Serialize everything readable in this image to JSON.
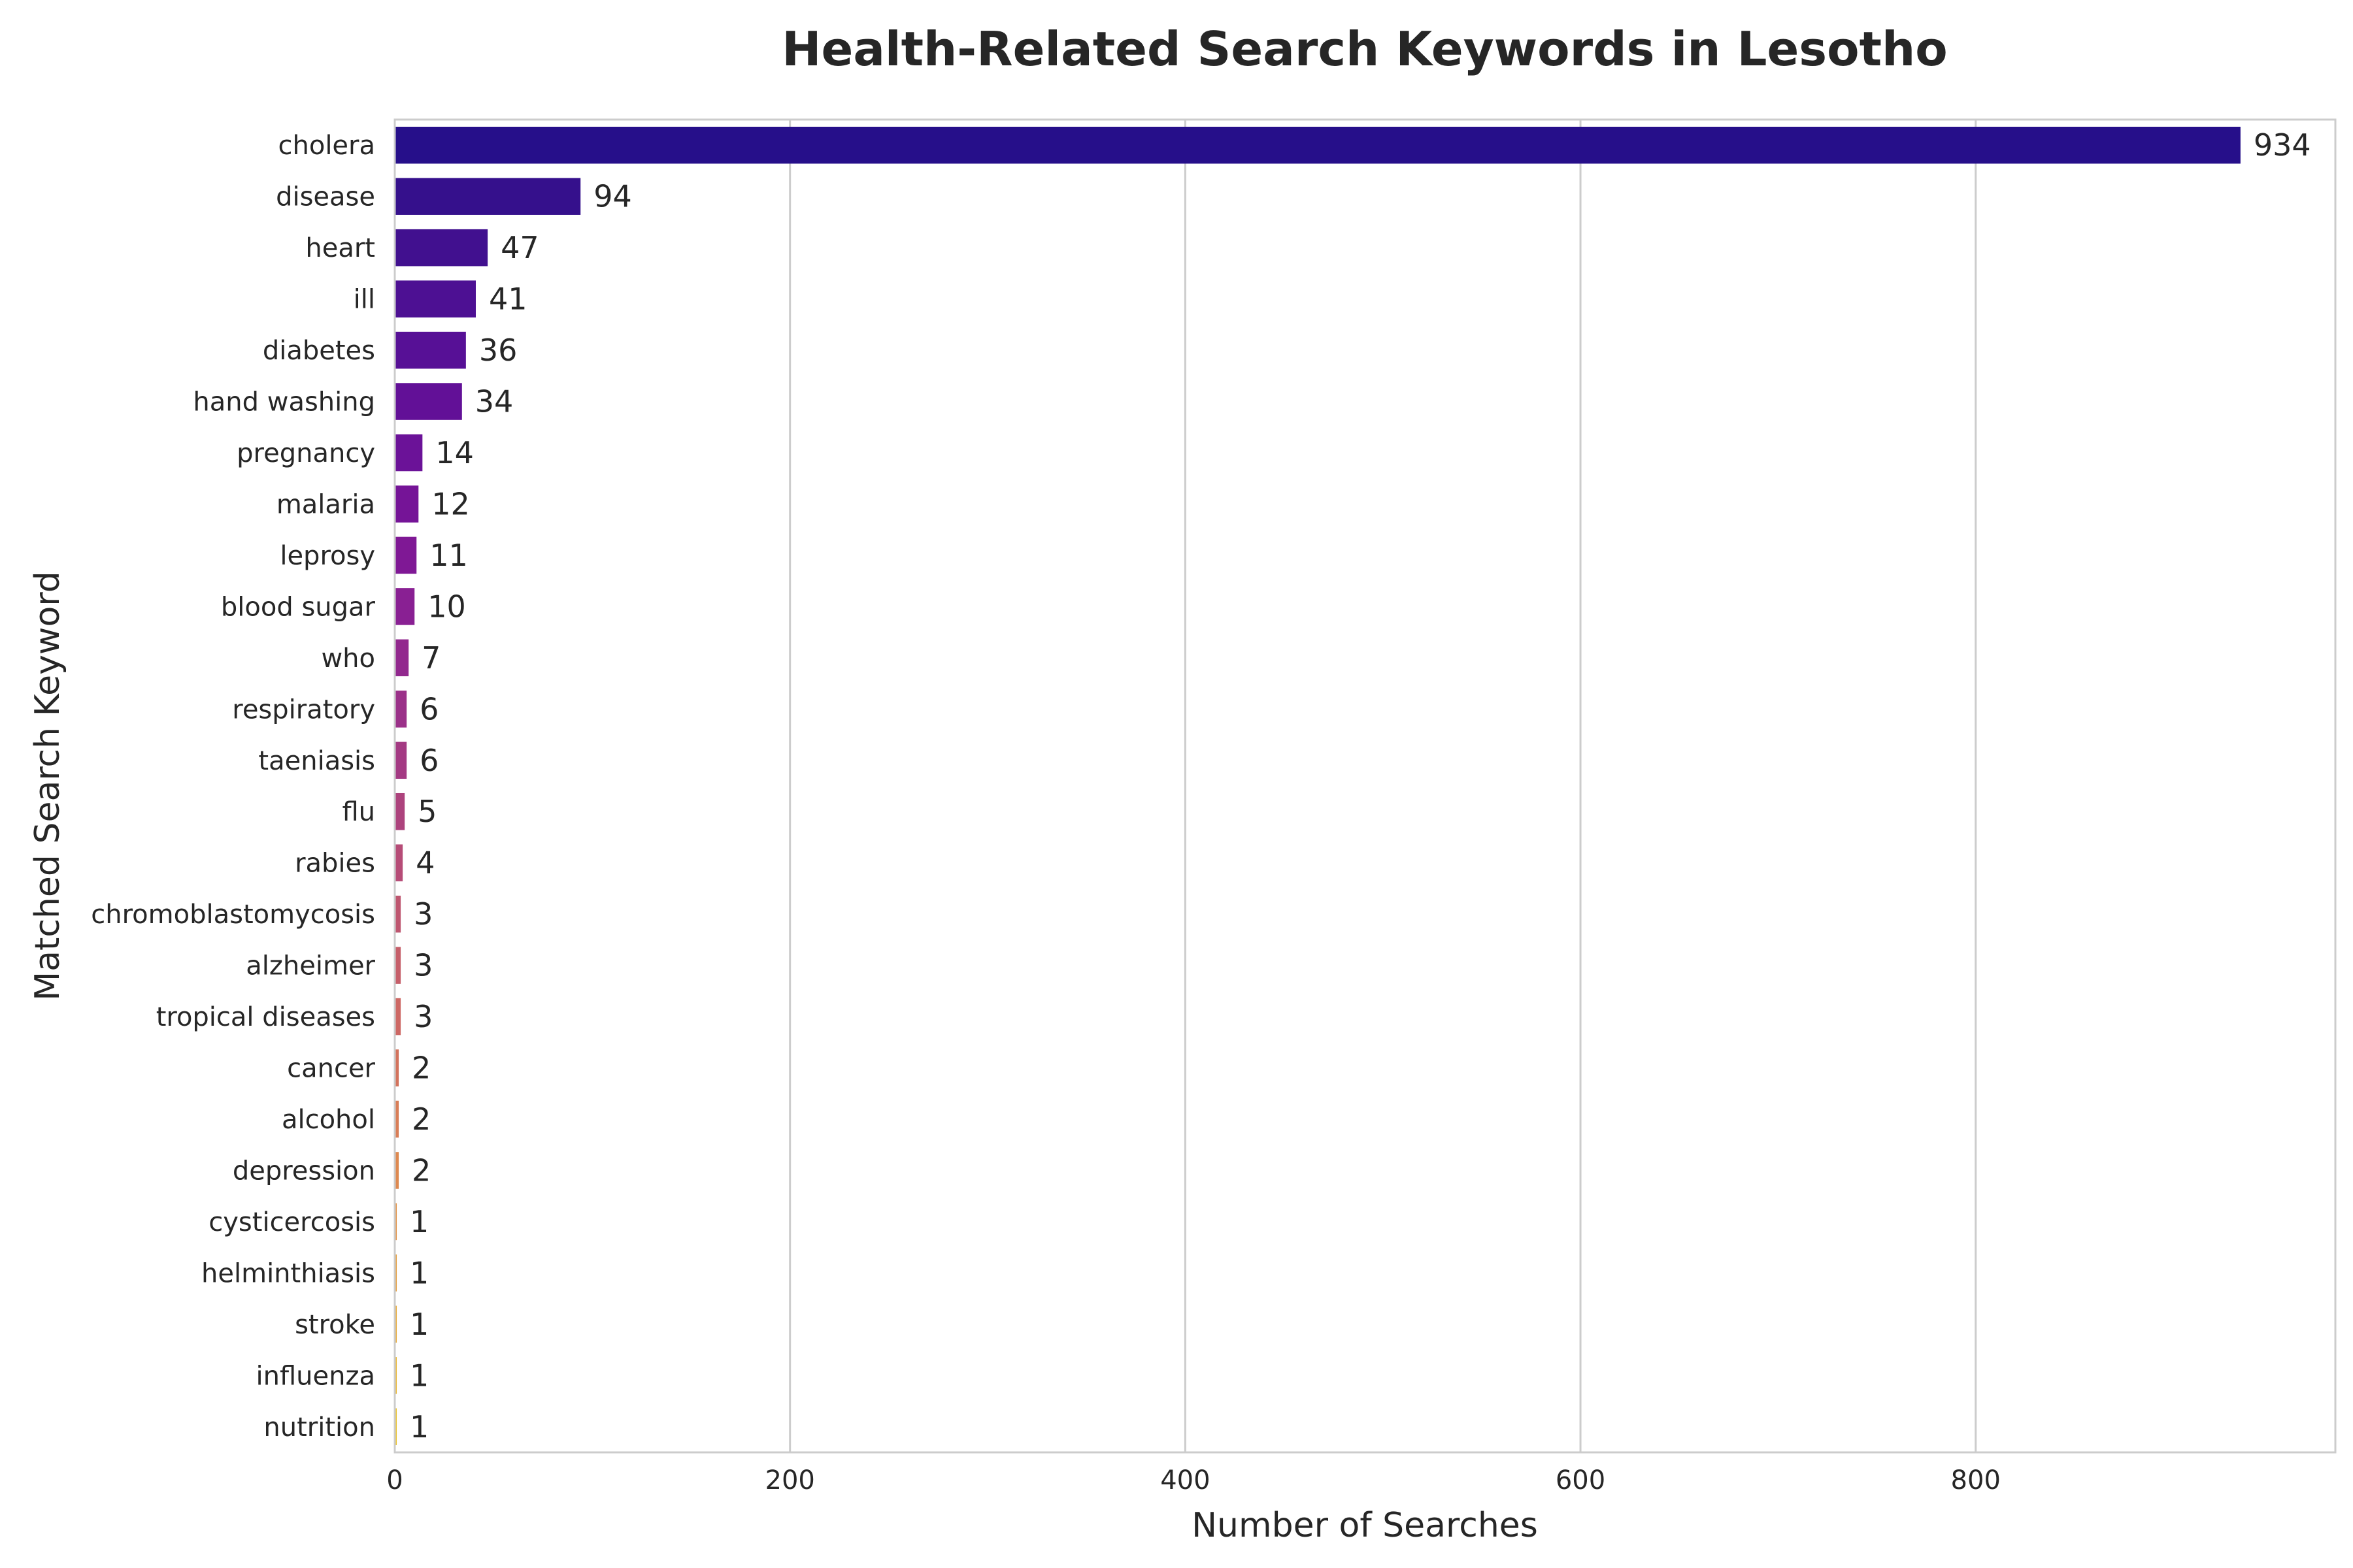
{
  "chart_data": {
    "type": "bar",
    "orientation": "horizontal",
    "title": "Health-Related Search Keywords in Lesotho",
    "xlabel": "Number of Searches",
    "ylabel": "Matched Search Keyword",
    "xlim": [
      0,
      982
    ],
    "xticks": [
      0,
      200,
      400,
      600,
      800
    ],
    "grid": "vertical",
    "categories": [
      "cholera",
      "disease",
      "heart",
      "ill",
      "diabetes",
      "hand washing",
      "pregnancy",
      "malaria",
      "leprosy",
      "blood sugar",
      "who",
      "respiratory",
      "taeniasis",
      "flu",
      "rabies",
      "chromoblastomycosis",
      "alzheimer",
      "tropical diseases",
      "cancer",
      "alcohol",
      "depression",
      "cysticercosis",
      "helminthiasis",
      "stroke",
      "influenza",
      "nutrition"
    ],
    "values": [
      934,
      94,
      47,
      41,
      36,
      34,
      14,
      12,
      11,
      10,
      7,
      6,
      6,
      5,
      4,
      3,
      3,
      3,
      2,
      2,
      2,
      1,
      1,
      1,
      1,
      1
    ],
    "colors": [
      "#260f8a",
      "#35108c",
      "#41108f",
      "#4d1093",
      "#571096",
      "#621097",
      "#6b1298",
      "#751497",
      "#7f1895",
      "#892093",
      "#92288e",
      "#9b3189",
      "#a43a83",
      "#ad437d",
      "#b64c77",
      "#be5670",
      "#c65f6a",
      "#cd6864",
      "#d3735d",
      "#d97e57",
      "#de8950",
      "#e29449",
      "#e5a042",
      "#e8ac3c",
      "#eab938",
      "#ebc534"
    ]
  }
}
